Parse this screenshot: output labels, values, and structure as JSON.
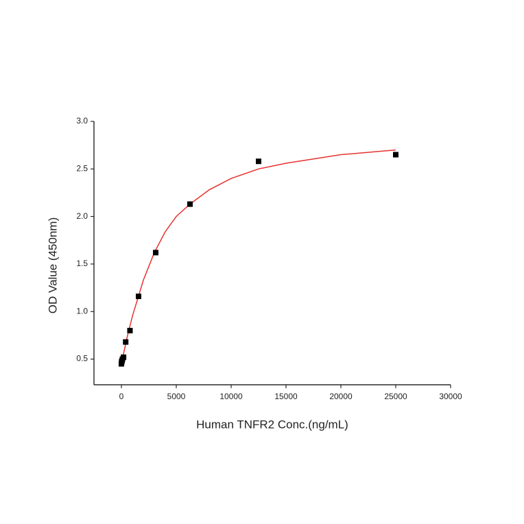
{
  "chart_data": {
    "type": "scatter",
    "x_label": "Human TNFR2 Conc.(ng/mL)",
    "y_label": "OD Value (450nm)",
    "xlim": [
      -2500,
      30000
    ],
    "ylim": [
      0.23,
      3.0
    ],
    "xticks": [
      0,
      5000,
      10000,
      15000,
      20000,
      25000,
      30000
    ],
    "yticks": [
      0.5,
      {
        "value": 1,
        "label": "1.0"
      },
      1.5,
      {
        "value": 2,
        "label": "2.0"
      },
      2.5,
      {
        "value": 3,
        "label": "3.0"
      }
    ],
    "grid": false,
    "series": [
      {
        "type": "scatter",
        "color": "#000000",
        "x": [
          0,
          24.4,
          48.8,
          97.7,
          195.3,
          390.6,
          781.25,
          1562.5,
          3125,
          6250,
          12500,
          25000
        ],
        "values": [
          0.45,
          0.47,
          0.48,
          0.5,
          0.52,
          0.68,
          0.8,
          1.16,
          1.62,
          2.13,
          2.58,
          2.65
        ]
      },
      {
        "type": "line",
        "color": "#e8312f",
        "x": [
          0,
          500,
          1000,
          2000,
          3000,
          4000,
          5000,
          6250,
          8000,
          10000,
          12500,
          15000,
          20000,
          25000
        ],
        "values": [
          0.45,
          0.72,
          0.95,
          1.33,
          1.62,
          1.84,
          2.0,
          2.13,
          2.28,
          2.4,
          2.5,
          2.56,
          2.65,
          2.7
        ]
      }
    ]
  }
}
